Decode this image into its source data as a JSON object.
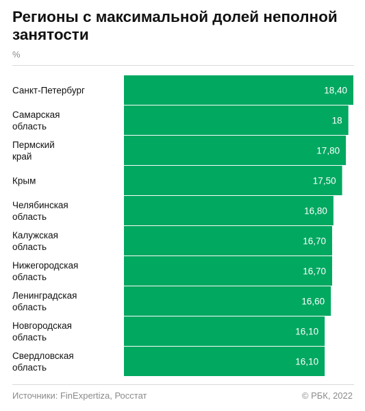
{
  "chart_data": {
    "type": "bar",
    "orientation": "horizontal",
    "title": "Регионы с максимальной долей неполной занятости",
    "unit": "%",
    "categories": [
      [
        "Санкт-Петербург"
      ],
      [
        "Самарская",
        "область"
      ],
      [
        "Пермский",
        "край"
      ],
      [
        "Крым"
      ],
      [
        "Челябинская",
        "область"
      ],
      [
        "Калужская",
        "область"
      ],
      [
        "Нижегородская",
        "область"
      ],
      [
        "Ленинградская",
        "область"
      ],
      [
        "Новгородская",
        "область"
      ],
      [
        "Свердловская",
        "область"
      ]
    ],
    "values": [
      18.4,
      18,
      17.8,
      17.5,
      16.8,
      16.7,
      16.7,
      16.6,
      16.1,
      16.1
    ],
    "value_labels": [
      "18,40",
      "18",
      "17,80",
      "17,50",
      "16,80",
      "16,70",
      "16,70",
      "16,60",
      "16,10",
      "16,10"
    ],
    "bar_color": "#00a860",
    "label_color": "#ffffff",
    "xlim": [
      0,
      18.4
    ],
    "grid": false,
    "legend": "none"
  },
  "footer": {
    "source": "Источники: FinExpertiza, Росстат",
    "copyright": "© РБК, 2022"
  }
}
